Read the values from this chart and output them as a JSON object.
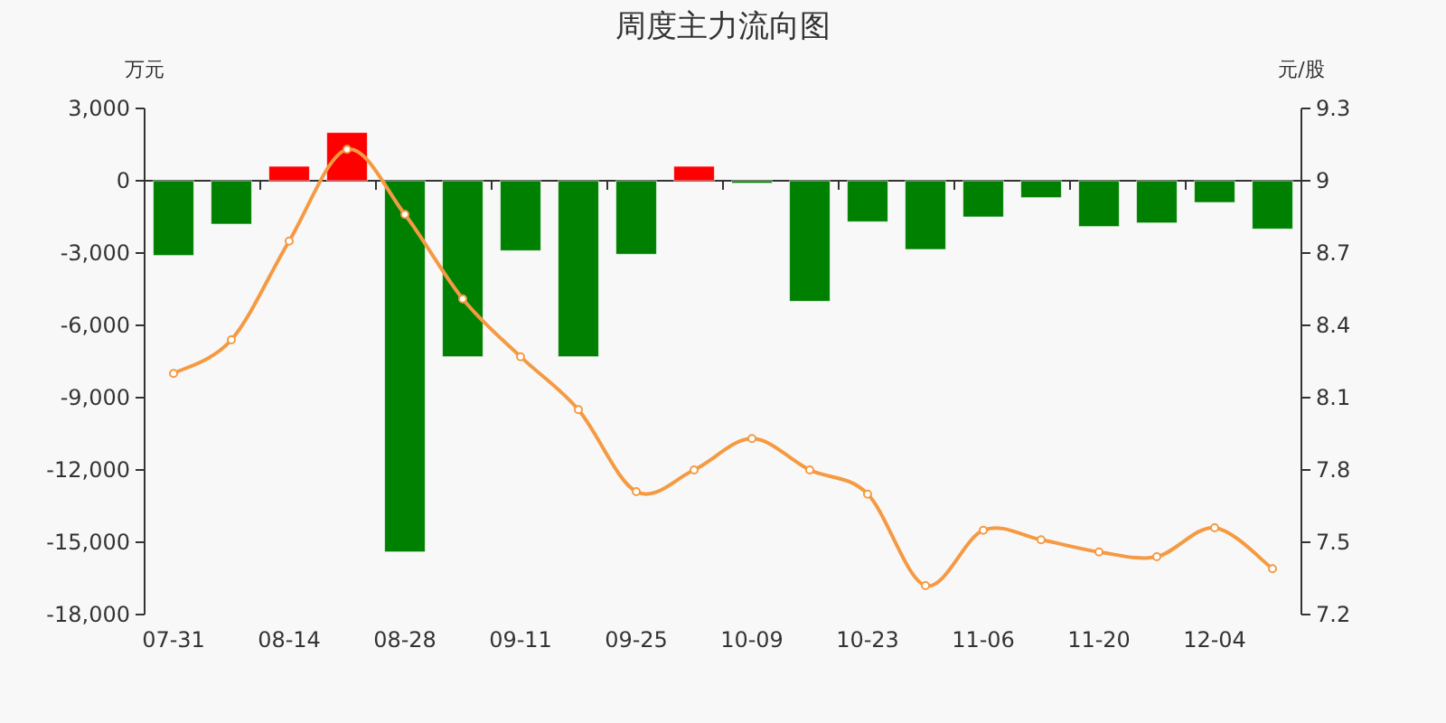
{
  "chart_data": {
    "type": "bar",
    "title": "周度主力流向图",
    "ylabel": "万元",
    "y2label": "元/股",
    "categories": [
      "07-31",
      null,
      "08-14",
      null,
      "08-28",
      null,
      "09-11",
      null,
      "09-25",
      null,
      "10-09",
      null,
      "10-23",
      null,
      "11-06",
      null,
      "11-20",
      null,
      "12-04",
      null
    ],
    "series": [
      {
        "colors": [
          "#008000",
          "#008000",
          "#ff0000",
          "#ff0000",
          "#008000",
          "#008000",
          "#008000",
          "#008000",
          "#008000",
          "#ff0000",
          "#008000",
          "#008000",
          "#008000",
          "#008000",
          "#008000",
          "#008000",
          "#008000",
          "#008000",
          "#008000",
          "#008000"
        ],
        "values": [
          -3100,
          -1800,
          600,
          2000,
          -15400,
          -7300,
          -2900,
          -7300,
          -3050,
          600,
          -100,
          -5000,
          -1700,
          -2850,
          -1500,
          -700,
          -1900,
          -1750,
          -900,
          -2000
        ]
      },
      {
        "type": "line",
        "axis": "y2",
        "color": "#f59a43",
        "marker": "circle",
        "values": [
          8.2,
          8.34,
          8.75,
          9.13,
          8.86,
          8.51,
          8.27,
          8.05,
          7.71,
          7.8,
          7.93,
          7.8,
          7.7,
          7.32,
          7.55,
          7.51,
          7.46,
          7.44,
          7.56,
          7.39
        ]
      }
    ],
    "ylim": [
      -18000,
      3000
    ],
    "yticks": [
      {
        "value": -18000,
        "label": "-18,000"
      },
      {
        "value": -15000,
        "label": "-15,000"
      },
      {
        "value": -12000,
        "label": "-12,000"
      },
      {
        "value": -9000,
        "label": "-9,000"
      },
      {
        "value": -6000,
        "label": "-6,000"
      },
      {
        "value": -3000,
        "label": "-3,000"
      },
      0,
      {
        "value": 3000,
        "label": "3,000"
      }
    ],
    "y2lim": [
      7.2,
      9.3
    ],
    "y2ticks": [
      7.2,
      7.5,
      7.8,
      8.1,
      8.4,
      8.7,
      9,
      9.3
    ]
  }
}
